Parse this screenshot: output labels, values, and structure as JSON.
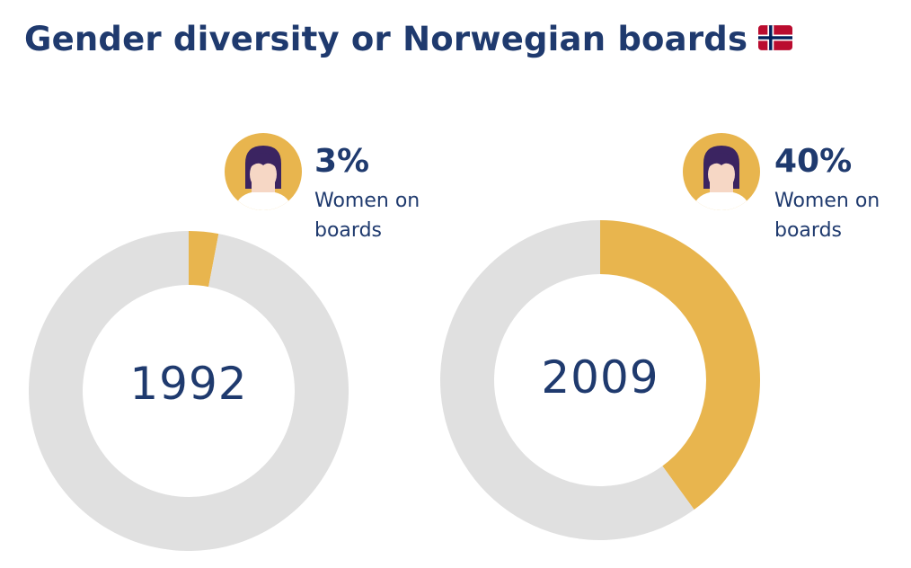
{
  "title": "Gender diversity or Norwegian boards",
  "flag_icon": "norway-flag-icon",
  "colors": {
    "women": "#e8b54e",
    "rest": "#e0e0e0",
    "text": "#1f3a6e",
    "avatar_bg": "#e8b54e",
    "hair": "#3b2461",
    "skin": "#f6d7c5"
  },
  "chart_data": [
    {
      "type": "pie",
      "variant": "donut",
      "center_label": "1992",
      "categories": [
        "Women on boards",
        "Other"
      ],
      "values": [
        3,
        97
      ],
      "stat_label": "3%",
      "stat_caption": "Women on boards"
    },
    {
      "type": "pie",
      "variant": "donut",
      "center_label": "2009",
      "categories": [
        "Women on boards",
        "Other"
      ],
      "values": [
        40,
        60
      ],
      "stat_label": "40%",
      "stat_caption": "Women on boards"
    }
  ]
}
